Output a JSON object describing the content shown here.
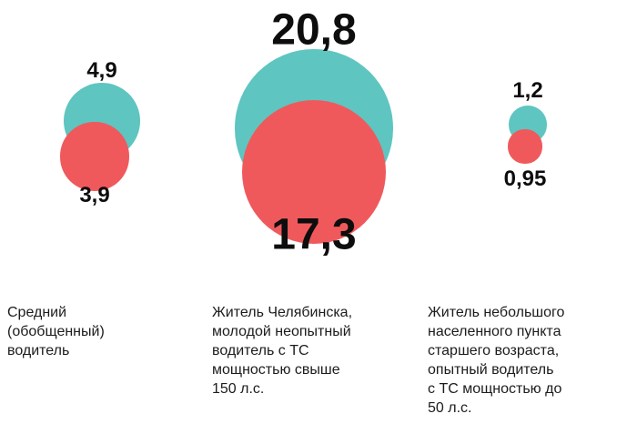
{
  "chart_data": {
    "type": "bubble",
    "title": "",
    "legend_position": "none",
    "grid": false,
    "colors": {
      "top_series": "#5ec5c0",
      "bottom_series": "#f0595c",
      "label_text": "#0d0d0d"
    },
    "groups": [
      {
        "caption": "Средний (обобщенный) водитель",
        "caption_lines": [
          "Средний",
          "(обобщенный)",
          "водитель"
        ],
        "top_value": 4.9,
        "top_value_label": "4,9",
        "bottom_value": 3.9,
        "bottom_value_label": "3,9"
      },
      {
        "caption": "Житель Челябинска, молодой неопытный водитель с ТС мощностью свыше 150 л.с.",
        "caption_lines": [
          "Житель Челябинска,",
          "молодой неопытный",
          "водитель с ТС",
          "мощностью свыше",
          "150 л.с."
        ],
        "top_value": 20.8,
        "top_value_label": "20,8",
        "bottom_value": 17.3,
        "bottom_value_label": "17,3"
      },
      {
        "caption": "Житель небольшого населенного пункта старшего возраста, опытный водитель с ТС мощностью до 50 л.с.",
        "caption_lines": [
          "Житель небольшого",
          "населенного пункта",
          "старшего возраста,",
          "опытный водитель",
          "с ТС мощностью до",
          "50 л.с."
        ],
        "top_value": 1.2,
        "top_value_label": "1,2",
        "bottom_value": 0.95,
        "bottom_value_label": "0,95"
      }
    ]
  }
}
